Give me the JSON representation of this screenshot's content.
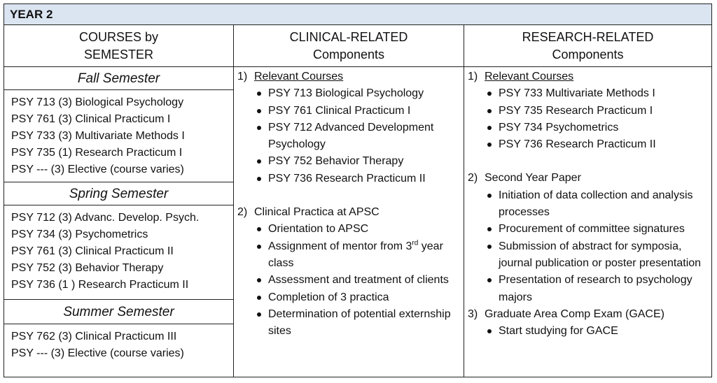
{
  "header": {
    "title": "YEAR 2"
  },
  "column_headers": [
    {
      "lines": [
        "COURSES by",
        "SEMESTER"
      ]
    },
    {
      "lines": [
        "CLINICAL-RELATED",
        "Components"
      ]
    },
    {
      "lines": [
        "RESEARCH-RELATED",
        "Components"
      ]
    }
  ],
  "semesters": [
    {
      "title": "Fall Semester",
      "courses": [
        "PSY 713 (3) Biological Psychology",
        "PSY 761 (3) Clinical Practicum I",
        "PSY 733 (3) Multivariate Methods I",
        "PSY 735 (1) Research Practicum I",
        "PSY --- (3) Elective (course varies)"
      ]
    },
    {
      "title": "Spring Semester",
      "courses": [
        "PSY 712 (3) Advanc. Develop. Psych.",
        "PSY 734 (3) Psychometrics",
        "PSY 761 (3) Clinical Practicum II",
        "PSY 752 (3) Behavior Therapy",
        "PSY 736 (1 ) Research Practicum II"
      ]
    },
    {
      "title": "Summer Semester",
      "courses": [
        "PSY 762 (3) Clinical Practicum III",
        "PSY --- (3) Elective (course varies)"
      ]
    }
  ],
  "clinical": [
    {
      "number": "1)",
      "title": "Relevant Courses",
      "bullets": [
        "PSY 713 Biological Psychology",
        "PSY 761 Clinical Practicum I",
        "PSY 712 Advanced Development Psychology",
        "PSY 752 Behavior Therapy",
        "PSY 736 Research Practicum II"
      ]
    },
    {
      "number": "2)",
      "title": "Clinical Practica at APSC",
      "bullets": [
        "Orientation to APSC",
        {
          "before": "Assignment of mentor from 3",
          "sup": "rd",
          "after": " year class"
        },
        "Assessment and treatment of clients",
        "Completion of 3 practica",
        "Determination of potential externship sites"
      ]
    }
  ],
  "research": [
    {
      "number": "1)",
      "title": "Relevant Courses",
      "bullets": [
        "PSY 733 Multivariate Methods I",
        "PSY 735 Research Practicum I",
        "PSY 734 Psychometrics",
        "PSY 736 Research Practicum II"
      ]
    },
    {
      "number": "2)",
      "title": "Second Year Paper",
      "bullets": [
        "Initiation of data collection and analysis processes",
        "Procurement of committee signatures",
        "Submission of abstract for symposia, journal publication or poster presentation",
        "Presentation of research to psychology majors"
      ]
    },
    {
      "number": "3)",
      "title": "Graduate Area Comp Exam (GACE)",
      "bullets": [
        "Start studying  for GACE"
      ]
    }
  ]
}
